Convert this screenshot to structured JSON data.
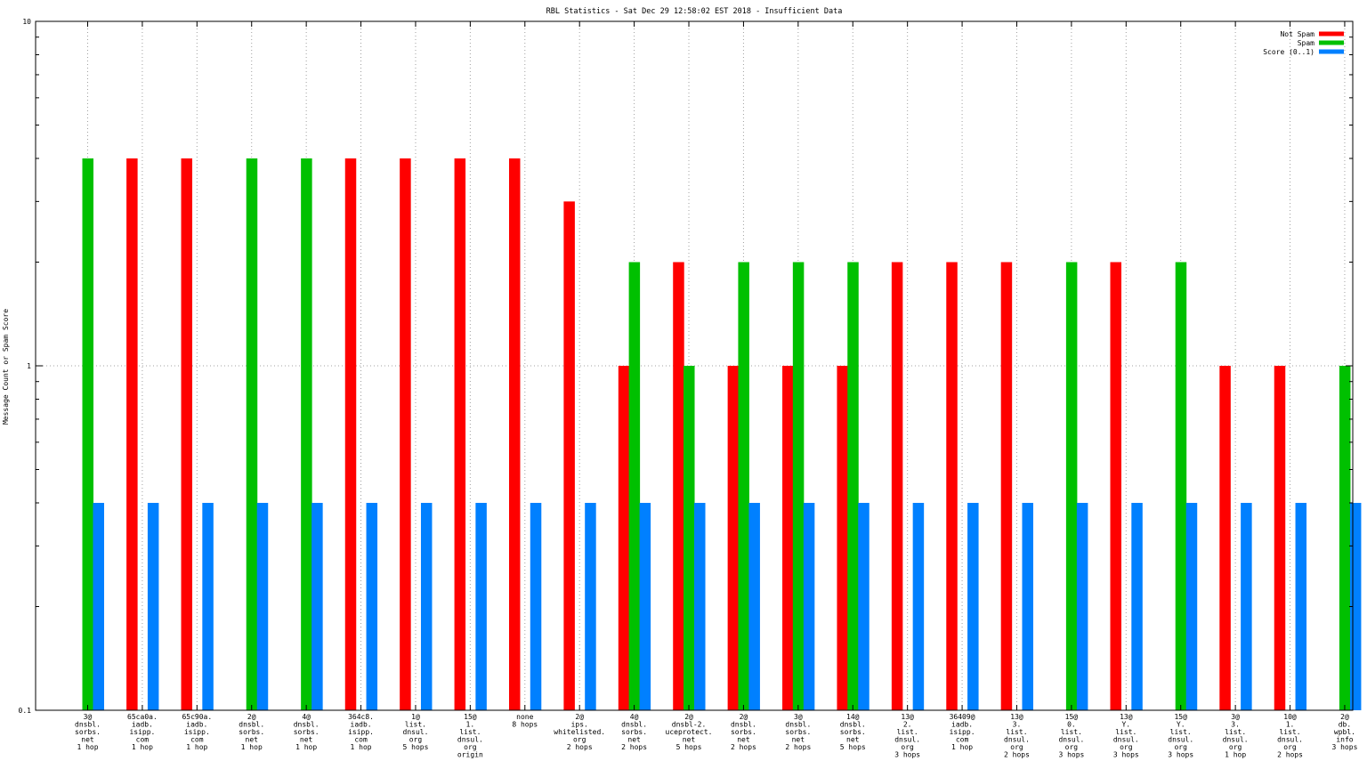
{
  "chart_data": {
    "type": "bar",
    "title": "RBL Statistics - Sat Dec 29 12:58:02 EST 2018 - Insufficient Data",
    "xlabel": "",
    "ylabel": "Message Count or Spam Score",
    "yscale": "log",
    "ylim": [
      0.1,
      10
    ],
    "yticks": [
      "0.1",
      "1",
      "10"
    ],
    "grid": true,
    "legend_position": "top-right",
    "categories": [
      [
        "3@",
        "dnsbl.",
        "sorbs.",
        "net",
        "1 hop"
      ],
      [
        "65ca0a.",
        "iadb.",
        "isipp.",
        "com",
        "1 hop"
      ],
      [
        "65c90a.",
        "iadb.",
        "isipp.",
        "com",
        "1 hop"
      ],
      [
        "2@",
        "dnsbl.",
        "sorbs.",
        "net",
        "1 hop"
      ],
      [
        "4@",
        "dnsbl.",
        "sorbs.",
        "net",
        "1 hop"
      ],
      [
        "364c8.",
        "iadb.",
        "isipp.",
        "com",
        "1 hop"
      ],
      [
        "1@",
        "list.",
        "dnsul.",
        "org",
        "5 hops"
      ],
      [
        "15@",
        "1.",
        "list.",
        "dnsul.",
        "org",
        "origin"
      ],
      [
        "none",
        "8 hops"
      ],
      [
        "2@",
        "ips.",
        "whitelisted.",
        "org",
        "2 hops"
      ],
      [
        "4@",
        "dnsbl.",
        "sorbs.",
        "net",
        "2 hops"
      ],
      [
        "2@",
        "dnsbl-2.",
        "uceprotect.",
        "net",
        "5 hops"
      ],
      [
        "2@",
        "dnsbl.",
        "sorbs.",
        "net",
        "2 hops"
      ],
      [
        "3@",
        "dnsbl.",
        "sorbs.",
        "net",
        "2 hops"
      ],
      [
        "14@",
        "dnsbl.",
        "sorbs.",
        "net",
        "5 hops"
      ],
      [
        "13@",
        "2.",
        "list.",
        "dnsul.",
        "org",
        "3 hops"
      ],
      [
        "36409@",
        "iadb.",
        "isipp.",
        "com",
        "1 hop"
      ],
      [
        "13@",
        "3.",
        "list.",
        "dnsul.",
        "org",
        "2 hops"
      ],
      [
        "15@",
        "0.",
        "list.",
        "dnsul.",
        "org",
        "3 hops"
      ],
      [
        "13@",
        "Y.",
        "list.",
        "dnsul.",
        "org",
        "3 hops"
      ],
      [
        "15@",
        "Y.",
        "list.",
        "dnsul.",
        "org",
        "3 hops"
      ],
      [
        "3@",
        "3.",
        "list.",
        "dnsul.",
        "org",
        "1 hop"
      ],
      [
        "10@",
        "1.",
        "list.",
        "dnsul.",
        "org",
        "2 hops"
      ],
      [
        "2@",
        "db.",
        "wpbl.",
        "info",
        "3 hops"
      ]
    ],
    "series": [
      {
        "name": "Not Spam",
        "color": "#ff0000",
        "values": [
          null,
          4,
          4,
          null,
          null,
          4,
          4,
          4,
          4,
          3,
          1,
          2,
          1,
          1,
          1,
          2,
          2,
          2,
          null,
          2,
          null,
          1,
          1,
          null
        ]
      },
      {
        "name": "Spam",
        "color": "#00c000",
        "values": [
          4,
          null,
          null,
          4,
          4,
          null,
          null,
          null,
          null,
          null,
          2,
          1,
          2,
          2,
          2,
          null,
          null,
          null,
          2,
          null,
          2,
          null,
          null,
          1
        ]
      },
      {
        "name": "Score (0..1)",
        "color": "#0080ff",
        "values": [
          0.4,
          0.4,
          0.4,
          0.4,
          0.4,
          0.4,
          0.4,
          0.4,
          0.4,
          0.4,
          0.4,
          0.4,
          0.4,
          0.4,
          0.4,
          0.4,
          0.4,
          0.4,
          0.4,
          0.4,
          0.4,
          0.4,
          0.4,
          0.4
        ]
      }
    ]
  }
}
